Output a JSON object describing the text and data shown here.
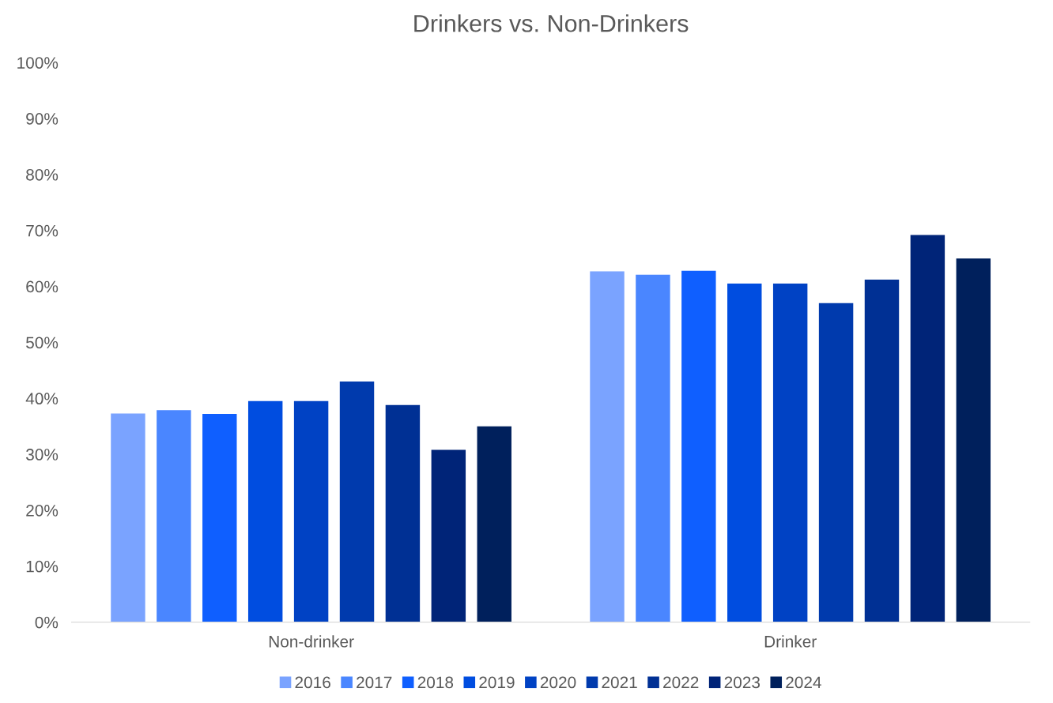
{
  "chart_data": {
    "type": "bar",
    "title": "Drinkers vs. Non-Drinkers",
    "categories": [
      "Non-drinker",
      "Drinker"
    ],
    "series": [
      {
        "name": "2016",
        "color": "#7aa3ff",
        "values": [
          37.3,
          62.7
        ]
      },
      {
        "name": "2017",
        "color": "#4a86ff",
        "values": [
          37.9,
          62.1
        ]
      },
      {
        "name": "2018",
        "color": "#0f5fff",
        "values": [
          37.2,
          62.8
        ]
      },
      {
        "name": "2019",
        "color": "#004de0",
        "values": [
          39.5,
          60.5
        ]
      },
      {
        "name": "2020",
        "color": "#0042c4",
        "values": [
          39.5,
          60.5
        ]
      },
      {
        "name": "2021",
        "color": "#003aad",
        "values": [
          43.0,
          57.0
        ]
      },
      {
        "name": "2022",
        "color": "#003094",
        "values": [
          38.8,
          61.2
        ]
      },
      {
        "name": "2023",
        "color": "#002478",
        "values": [
          30.8,
          69.2
        ]
      },
      {
        "name": "2024",
        "color": "#00205c",
        "values": [
          35.0,
          65.0
        ]
      }
    ],
    "ylim": [
      0,
      100
    ],
    "yticks": [
      {
        "value": 0,
        "label": "0%"
      },
      {
        "value": 10,
        "label": "10%"
      },
      {
        "value": 20,
        "label": "20%"
      },
      {
        "value": 30,
        "label": "30%"
      },
      {
        "value": 40,
        "label": "40%"
      },
      {
        "value": 50,
        "label": "50%"
      },
      {
        "value": 60,
        "label": "60%"
      },
      {
        "value": 70,
        "label": "70%"
      },
      {
        "value": 80,
        "label": "80%"
      },
      {
        "value": 90,
        "label": "90%"
      },
      {
        "value": 100,
        "label": "100%"
      }
    ],
    "grid": false,
    "legend": "bottom"
  }
}
